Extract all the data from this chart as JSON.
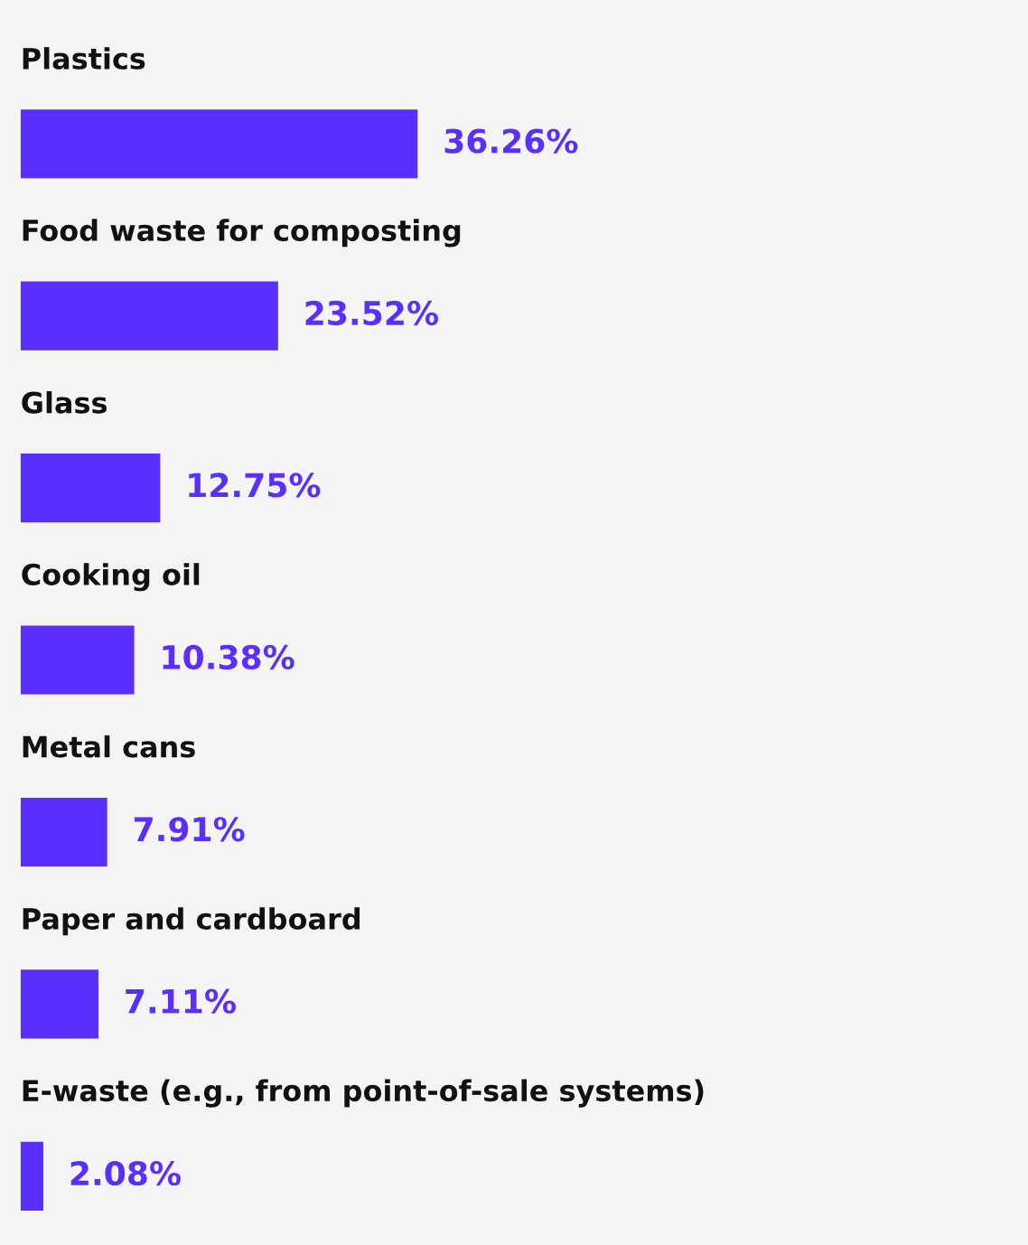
{
  "chart_data": {
    "type": "bar",
    "orientation": "horizontal",
    "categories": [
      "Plastics",
      "Food waste for composting",
      "Glass",
      "Cooking oil",
      "Metal cans",
      "Paper and cardboard",
      "E-waste (e.g., from point-of-sale systems)"
    ],
    "values": [
      36.26,
      23.52,
      12.75,
      10.38,
      7.91,
      7.11,
      2.08
    ],
    "value_labels": [
      "36.26%",
      "23.52%",
      "12.75%",
      "10.38%",
      "7.91%",
      "7.11%",
      "2.08%"
    ],
    "color": "#5a2efc",
    "xlim": [
      0,
      92
    ]
  }
}
